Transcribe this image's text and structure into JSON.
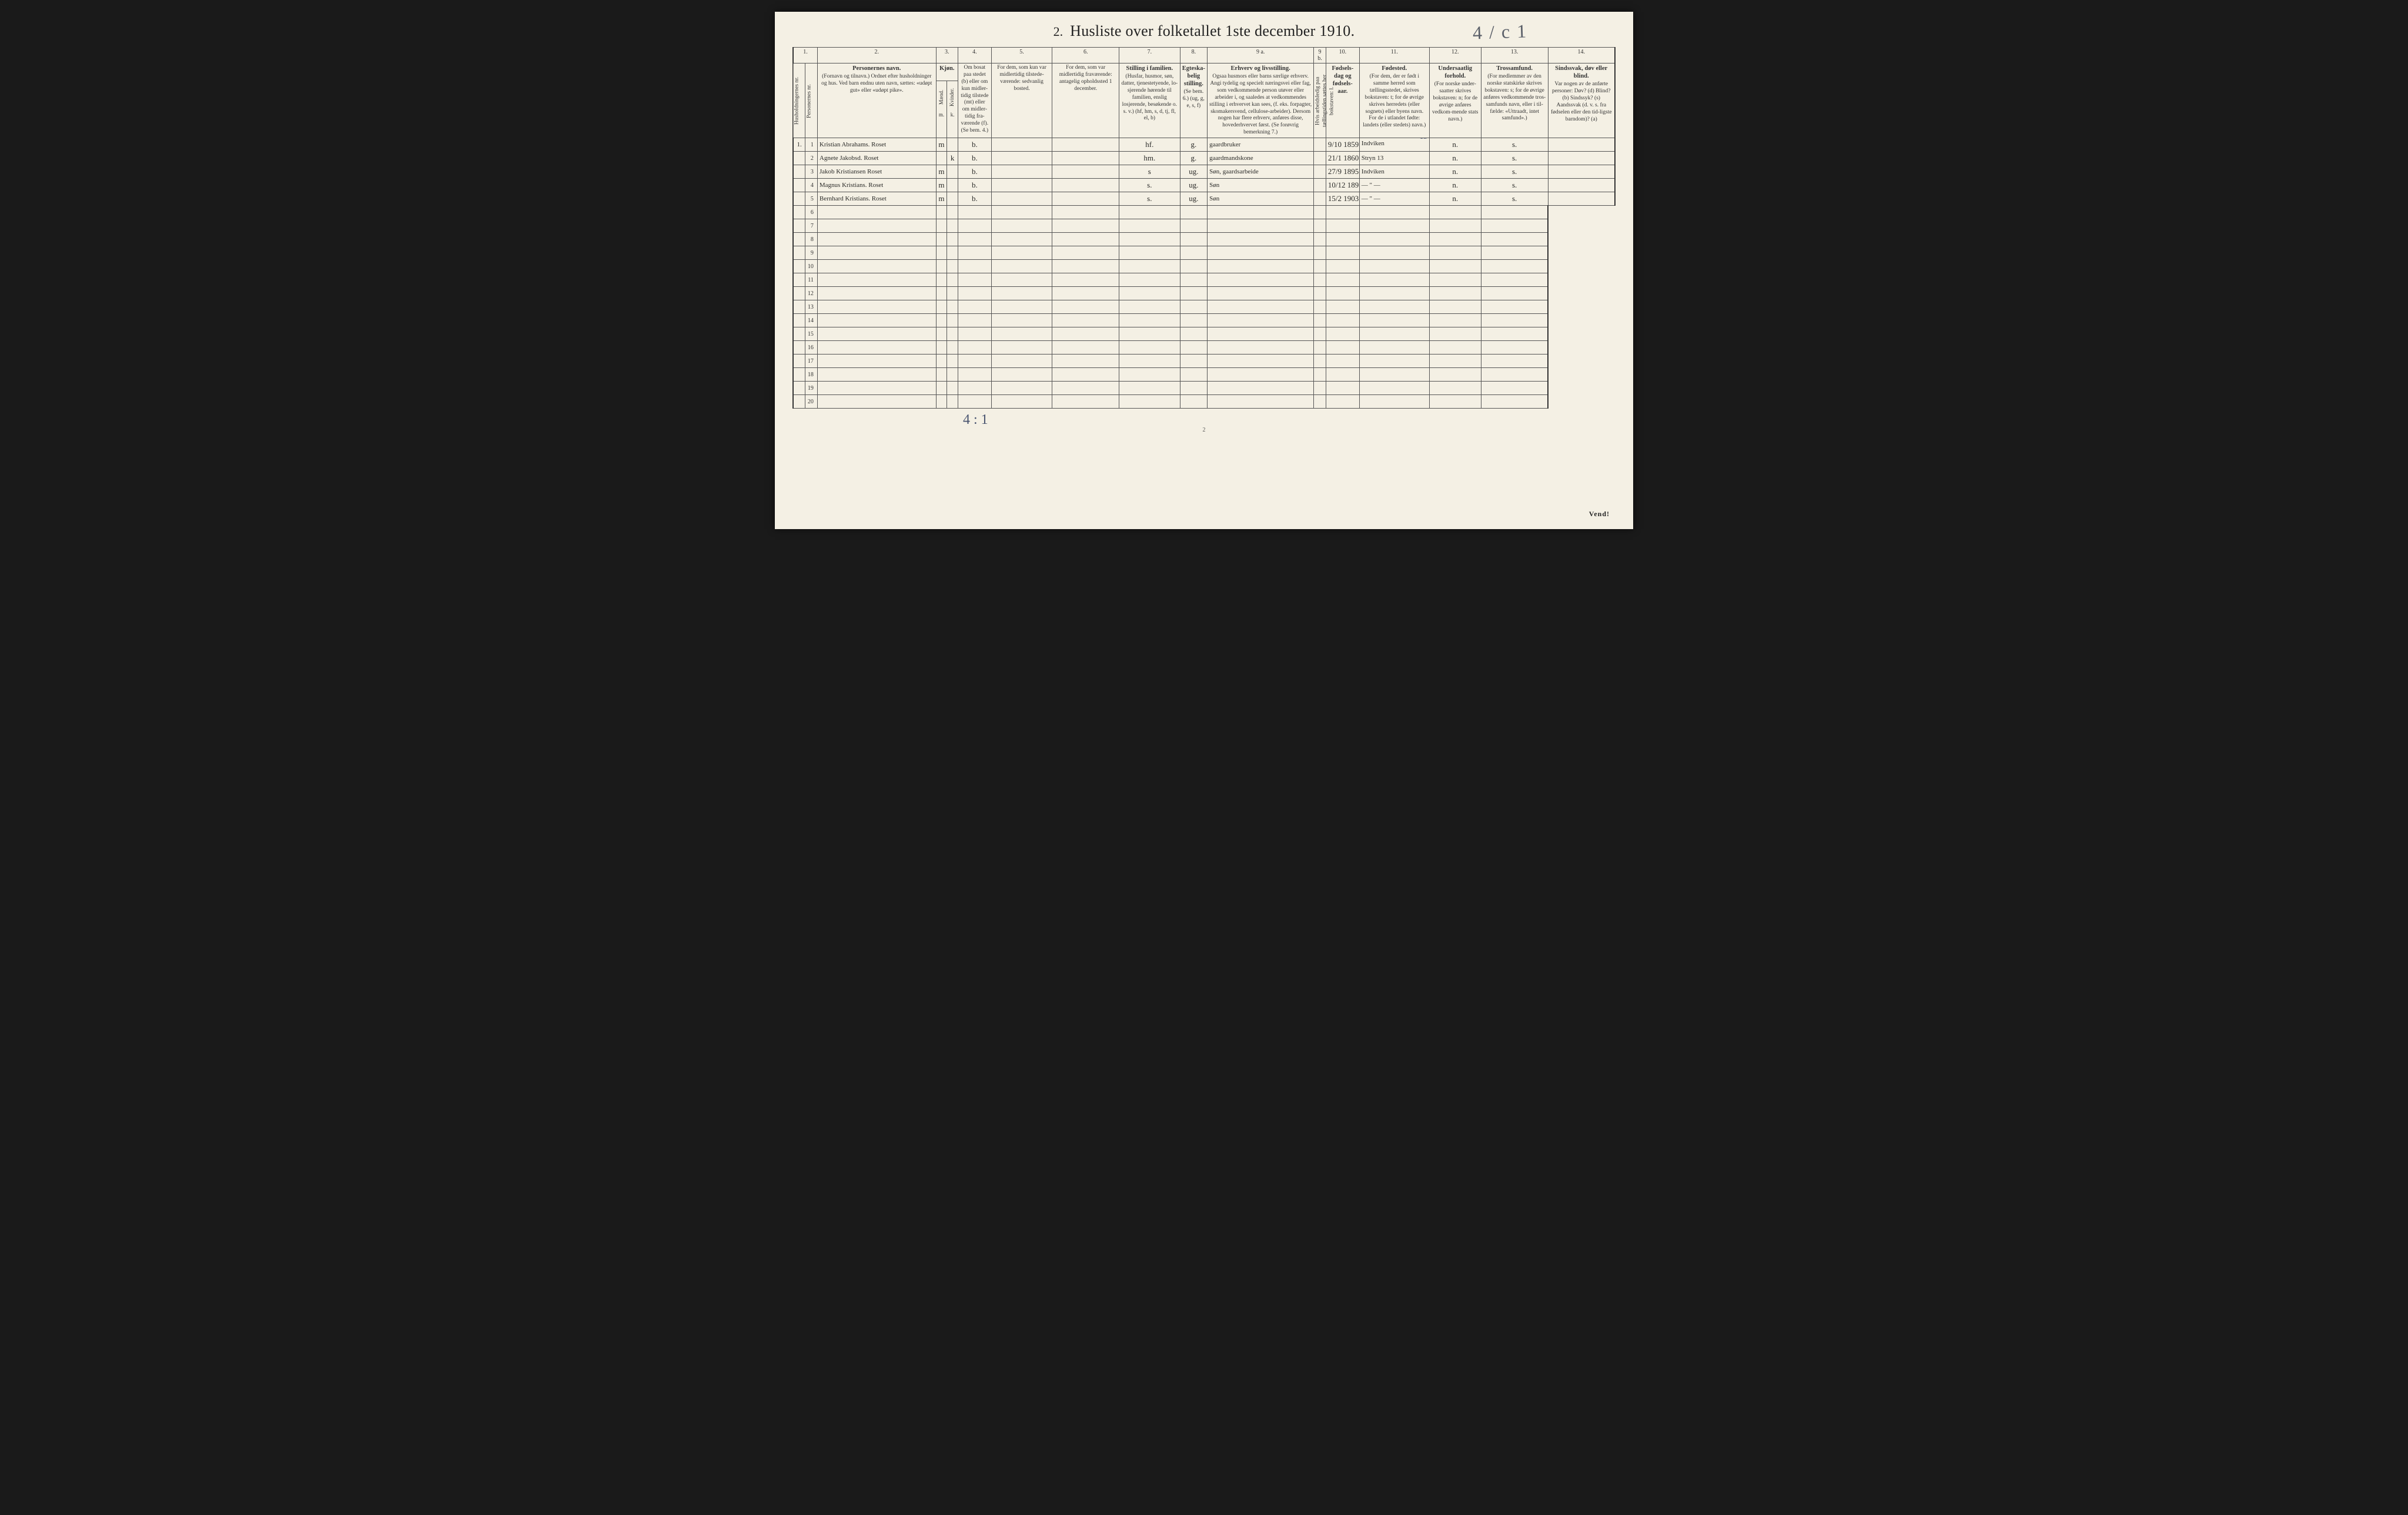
{
  "title_num": "2.",
  "title_text": "Husliste over folketallet 1ste december 1910.",
  "hand_top": "4 / c 1",
  "colnums": [
    "1.",
    "2.",
    "3.",
    "4.",
    "5.",
    "6.",
    "7.",
    "8.",
    "9 a.",
    "9 b.",
    "10.",
    "11.",
    "12.",
    "13.",
    "14."
  ],
  "headers": {
    "c1a": "Husholdningernes nr.",
    "c1b": "Personernes nr.",
    "c2_title": "Personernes navn.",
    "c2_body": "(Fornavn og tilnavn.)\nOrdnet efter husholdninger og hus.\nVed barn endnu uten navn, sættes: «udøpt gut» eller «udøpt pike».",
    "c3_title": "Kjøn.",
    "c3_m": "m.",
    "c3_k": "k.",
    "c3_sub1": "Mænd.",
    "c3_sub2": "Kvinder.",
    "c4": "Om bosat paa stedet (b) eller om kun midler-tidig tilstede (mt) eller om midler-tidig fra-værende (f). (Se bem. 4.)",
    "c5": "For dem, som kun var midlertidig tilstede-værende:\nsedvanlig bosted.",
    "c6": "For dem, som var midlertidig fraværende:\nantagelig opholdssted 1 december.",
    "c7_title": "Stilling i familien.",
    "c7_body": "(Husfar, husmor, søn, datter, tjenestetyende, lo-sjerende hørende til familien, enslig losjerende, besøkende o. s. v.)\n(hf, hm, s, d, tj, fl, el, b)",
    "c8_title": "Egteska-belig stilling.",
    "c8_body": "(Se bem. 6.)\n(ug, g, e, s, f)",
    "c9a_title": "Erhverv og livsstilling.",
    "c9a_body": "Ogsaa husmors eller barns særlige erhverv. Angi tydelig og specielt næringsvei eller fag, som vedkommende person utøver eller arbeider i, og saaledes at vedkommendes stilling i erhvervet kan sees, (f. eks. forpagter, skomakersvend, cellulose-arbeider). Dersom nogen har flere erhverv, anføres disse, hovederhvervet først. (Se forøvrig bemerkning 7.)",
    "c9b": "Hvis arbeidsledig paa tællingstiden sættes her bokstaven: l.",
    "c10_title": "Fødsels-dag og fødsels-aar.",
    "c11_title": "Fødested.",
    "c11_body": "(For dem, der er født i samme herred som tællingsstedet, skrives bokstaven: t; for de øvrige skrives herredets (eller sognets) eller byens navn. For de i utlandet fødte: landets (eller stedets) navn.)",
    "c12_title": "Undersaatlig forhold.",
    "c12_body": "(For norske under-saatter skrives bokstaven: n; for de øvrige anføres vedkom-mende stats navn.)",
    "c13_title": "Trossamfund.",
    "c13_body": "(For medlemmer av den norske statskirke skrives bokstaven: s; for de øvrige anføres vedkommende tros-samfunds navn, eller i til-fælde: «Uttraadt, intet samfund».)",
    "c14_title": "Sindssvak, døv eller blind.",
    "c14_body": "Var nogen av de anførte personer:\nDøv? (d)\nBlind? (b)\nSindssyk? (s)\nAandssvak (d. v. s. fra fødselen eller den tid-ligste barndom)? (a)"
  },
  "hand_col11_extra": "13",
  "rows": [
    {
      "hh": "1.",
      "n": "1",
      "name": "Kristian Abrahams. Roset",
      "mk": "m",
      "res": "b.",
      "pos": "hf.",
      "mar": "g.",
      "occ": "gaardbruker",
      "dob": "9/10 1859",
      "birthplace": "Indviken",
      "nat": "n.",
      "rel": "s."
    },
    {
      "hh": "",
      "n": "2",
      "name": "Agnete Jakobsd. Roset",
      "mk": "k",
      "res": "b.",
      "pos": "hm.",
      "mar": "g.",
      "occ": "gaardmandskone",
      "dob": "21/1 1860",
      "birthplace": "Stryn 13",
      "nat": "n.",
      "rel": "s."
    },
    {
      "hh": "",
      "n": "3",
      "name": "Jakob Kristiansen Roset",
      "mk": "m",
      "res": "b.",
      "pos": "s",
      "mar": "ug.",
      "occ": "Søn, gaardsarbeide",
      "dob": "27/9 1895",
      "birthplace": "Indviken",
      "nat": "n.",
      "rel": "s."
    },
    {
      "hh": "",
      "n": "4",
      "name": "Magnus Kristians. Roset",
      "mk": "m",
      "res": "b.",
      "pos": "s.",
      "mar": "ug.",
      "occ": "Søn",
      "dob": "10/12 1897",
      "birthplace": "— \" —",
      "nat": "n.",
      "rel": "s."
    },
    {
      "hh": "",
      "n": "5",
      "name": "Bernhard Kristians. Roset",
      "mk": "m",
      "res": "b.",
      "pos": "s.",
      "mar": "ug.",
      "occ": "Søn",
      "dob": "15/2 1903",
      "birthplace": "— \" —",
      "nat": "n.",
      "rel": "s."
    }
  ],
  "empty_rows": [
    6,
    7,
    8,
    9,
    10,
    11,
    12,
    13,
    14,
    15,
    16,
    17,
    18,
    19,
    20
  ],
  "footer_hand": "4 : 1",
  "page_num": "2",
  "vend": "Vend!",
  "colwidths": {
    "c1a": 20,
    "c1b": 20,
    "c2": 195,
    "c3m": 18,
    "c3k": 18,
    "c4": 55,
    "c5": 100,
    "c6": 110,
    "c7": 100,
    "c8": 45,
    "c9a": 175,
    "c9b": 20,
    "c10": 55,
    "c11": 115,
    "c12": 85,
    "c13": 110,
    "c14": 110
  }
}
